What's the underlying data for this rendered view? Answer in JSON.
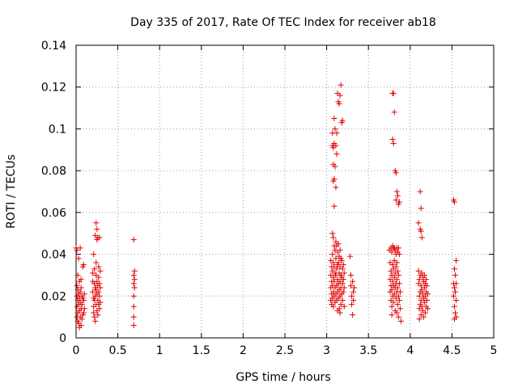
{
  "chart_data": {
    "type": "scatter",
    "title": "Day 335 of 2017, Rate Of TEC Index for receiver ab18",
    "xlabel": "GPS time / hours",
    "ylabel": "ROTI / TECUs",
    "xlim": [
      0,
      5
    ],
    "ylim": [
      0,
      0.14
    ],
    "grid": true,
    "marker": "+",
    "marker_color": "#e00000",
    "xticks": [
      "0",
      "0.5",
      "1",
      "1.5",
      "2",
      "2.5",
      "3",
      "3.5",
      "4",
      "4.5",
      "5"
    ],
    "yticks": [
      "0",
      "0.02",
      "0.04",
      "0.06",
      "0.08",
      "0.1",
      "0.12",
      "0.14"
    ],
    "series": [
      {
        "name": "ROTI",
        "points": [
          [
            0.0,
            0.043
          ],
          [
            0.01,
            0.042
          ],
          [
            0.01,
            0.025
          ],
          [
            0.01,
            0.02
          ],
          [
            0.01,
            0.015
          ],
          [
            0.01,
            0.01
          ],
          [
            0.02,
            0.023
          ],
          [
            0.02,
            0.018
          ],
          [
            0.02,
            0.012
          ],
          [
            0.02,
            0.008
          ],
          [
            0.03,
            0.021
          ],
          [
            0.03,
            0.016
          ],
          [
            0.03,
            0.007
          ],
          [
            0.04,
            0.027
          ],
          [
            0.04,
            0.019
          ],
          [
            0.04,
            0.013
          ],
          [
            0.04,
            0.005
          ],
          [
            0.05,
            0.043
          ],
          [
            0.05,
            0.022
          ],
          [
            0.05,
            0.017
          ],
          [
            0.05,
            0.01
          ],
          [
            0.06,
            0.024
          ],
          [
            0.06,
            0.014
          ],
          [
            0.06,
            0.006
          ],
          [
            0.07,
            0.02
          ],
          [
            0.07,
            0.016
          ],
          [
            0.07,
            0.009
          ],
          [
            0.08,
            0.034
          ],
          [
            0.08,
            0.019
          ],
          [
            0.08,
            0.011
          ],
          [
            0.09,
            0.035
          ],
          [
            0.09,
            0.018
          ],
          [
            0.09,
            0.012
          ],
          [
            0.1,
            0.021
          ],
          [
            0.1,
            0.014
          ],
          [
            0.03,
            0.038
          ],
          [
            0.02,
            0.03
          ],
          [
            0.06,
            0.028
          ],
          [
            0.2,
            0.031
          ],
          [
            0.2,
            0.027
          ],
          [
            0.2,
            0.022
          ],
          [
            0.21,
            0.019
          ],
          [
            0.21,
            0.015
          ],
          [
            0.21,
            0.012
          ],
          [
            0.22,
            0.026
          ],
          [
            0.22,
            0.018
          ],
          [
            0.22,
            0.01
          ],
          [
            0.23,
            0.049
          ],
          [
            0.23,
            0.024
          ],
          [
            0.23,
            0.02
          ],
          [
            0.23,
            0.008
          ],
          [
            0.24,
            0.055
          ],
          [
            0.24,
            0.03
          ],
          [
            0.24,
            0.023
          ],
          [
            0.24,
            0.016
          ],
          [
            0.25,
            0.052
          ],
          [
            0.25,
            0.047
          ],
          [
            0.25,
            0.027
          ],
          [
            0.25,
            0.021
          ],
          [
            0.25,
            0.013
          ],
          [
            0.26,
            0.048
          ],
          [
            0.26,
            0.025
          ],
          [
            0.26,
            0.018
          ],
          [
            0.26,
            0.011
          ],
          [
            0.27,
            0.029
          ],
          [
            0.27,
            0.022
          ],
          [
            0.27,
            0.016
          ],
          [
            0.28,
            0.048
          ],
          [
            0.28,
            0.026
          ],
          [
            0.28,
            0.02
          ],
          [
            0.28,
            0.014
          ],
          [
            0.29,
            0.032
          ],
          [
            0.29,
            0.024
          ],
          [
            0.29,
            0.017
          ],
          [
            0.21,
            0.04
          ],
          [
            0.22,
            0.033
          ],
          [
            0.24,
            0.036
          ],
          [
            0.27,
            0.034
          ],
          [
            0.69,
            0.047
          ],
          [
            0.69,
            0.03
          ],
          [
            0.69,
            0.026
          ],
          [
            0.69,
            0.02
          ],
          [
            0.69,
            0.015
          ],
          [
            0.69,
            0.01
          ],
          [
            0.69,
            0.006
          ],
          [
            0.7,
            0.032
          ],
          [
            0.7,
            0.028
          ],
          [
            0.7,
            0.024
          ],
          [
            3.05,
            0.037
          ],
          [
            3.05,
            0.03
          ],
          [
            3.05,
            0.024
          ],
          [
            3.05,
            0.018
          ],
          [
            3.06,
            0.034
          ],
          [
            3.06,
            0.027
          ],
          [
            3.06,
            0.021
          ],
          [
            3.06,
            0.016
          ],
          [
            3.07,
            0.098
          ],
          [
            3.07,
            0.092
          ],
          [
            3.07,
            0.05
          ],
          [
            3.07,
            0.04
          ],
          [
            3.07,
            0.032
          ],
          [
            3.07,
            0.025
          ],
          [
            3.07,
            0.019
          ],
          [
            3.08,
            0.091
          ],
          [
            3.08,
            0.083
          ],
          [
            3.08,
            0.075
          ],
          [
            3.08,
            0.048
          ],
          [
            3.08,
            0.036
          ],
          [
            3.08,
            0.029
          ],
          [
            3.08,
            0.022
          ],
          [
            3.08,
            0.015
          ],
          [
            3.09,
            0.105
          ],
          [
            3.09,
            0.093
          ],
          [
            3.09,
            0.076
          ],
          [
            3.09,
            0.063
          ],
          [
            3.09,
            0.044
          ],
          [
            3.09,
            0.034
          ],
          [
            3.09,
            0.027
          ],
          [
            3.09,
            0.02
          ],
          [
            3.1,
            0.1
          ],
          [
            3.1,
            0.082
          ],
          [
            3.1,
            0.042
          ],
          [
            3.1,
            0.031
          ],
          [
            3.1,
            0.024
          ],
          [
            3.1,
            0.017
          ],
          [
            3.11,
            0.092
          ],
          [
            3.11,
            0.072
          ],
          [
            3.11,
            0.046
          ],
          [
            3.11,
            0.038
          ],
          [
            3.11,
            0.03
          ],
          [
            3.11,
            0.021
          ],
          [
            3.12,
            0.098
          ],
          [
            3.12,
            0.088
          ],
          [
            3.12,
            0.044
          ],
          [
            3.12,
            0.033
          ],
          [
            3.12,
            0.025
          ],
          [
            3.12,
            0.018
          ],
          [
            3.13,
            0.117
          ],
          [
            3.13,
            0.041
          ],
          [
            3.13,
            0.035
          ],
          [
            3.13,
            0.028
          ],
          [
            3.13,
            0.022
          ],
          [
            3.14,
            0.113
          ],
          [
            3.14,
            0.045
          ],
          [
            3.14,
            0.036
          ],
          [
            3.14,
            0.026
          ],
          [
            3.14,
            0.019
          ],
          [
            3.15,
            0.112
          ],
          [
            3.15,
            0.039
          ],
          [
            3.15,
            0.031
          ],
          [
            3.15,
            0.023
          ],
          [
            3.15,
            0.014
          ],
          [
            3.16,
            0.116
          ],
          [
            3.16,
            0.042
          ],
          [
            3.16,
            0.034
          ],
          [
            3.16,
            0.027
          ],
          [
            3.16,
            0.02
          ],
          [
            3.17,
            0.121
          ],
          [
            3.17,
            0.038
          ],
          [
            3.17,
            0.03
          ],
          [
            3.17,
            0.024
          ],
          [
            3.17,
            0.016
          ],
          [
            3.18,
            0.103
          ],
          [
            3.18,
            0.037
          ],
          [
            3.18,
            0.029
          ],
          [
            3.18,
            0.021
          ],
          [
            3.19,
            0.104
          ],
          [
            3.19,
            0.033
          ],
          [
            3.19,
            0.026
          ],
          [
            3.19,
            0.018
          ],
          [
            3.2,
            0.035
          ],
          [
            3.2,
            0.028
          ],
          [
            3.2,
            0.022
          ],
          [
            3.21,
            0.031
          ],
          [
            3.21,
            0.024
          ],
          [
            3.21,
            0.015
          ],
          [
            3.13,
            0.013
          ],
          [
            3.16,
            0.012
          ],
          [
            3.28,
            0.039
          ],
          [
            3.29,
            0.03
          ],
          [
            3.29,
            0.025
          ],
          [
            3.3,
            0.02
          ],
          [
            3.3,
            0.016
          ],
          [
            3.31,
            0.027
          ],
          [
            3.31,
            0.011
          ],
          [
            3.32,
            0.022
          ],
          [
            3.32,
            0.018
          ],
          [
            3.33,
            0.024
          ],
          [
            3.75,
            0.042
          ],
          [
            3.76,
            0.036
          ],
          [
            3.76,
            0.028
          ],
          [
            3.76,
            0.022
          ],
          [
            3.77,
            0.043
          ],
          [
            3.77,
            0.032
          ],
          [
            3.77,
            0.025
          ],
          [
            3.77,
            0.018
          ],
          [
            3.78,
            0.041
          ],
          [
            3.78,
            0.03
          ],
          [
            3.78,
            0.023
          ],
          [
            3.78,
            0.015
          ],
          [
            3.79,
            0.117
          ],
          [
            3.79,
            0.095
          ],
          [
            3.79,
            0.044
          ],
          [
            3.79,
            0.035
          ],
          [
            3.79,
            0.027
          ],
          [
            3.79,
            0.02
          ],
          [
            3.8,
            0.117
          ],
          [
            3.8,
            0.093
          ],
          [
            3.8,
            0.043
          ],
          [
            3.8,
            0.033
          ],
          [
            3.8,
            0.025
          ],
          [
            3.8,
            0.017
          ],
          [
            3.81,
            0.108
          ],
          [
            3.81,
            0.043
          ],
          [
            3.81,
            0.037
          ],
          [
            3.81,
            0.029
          ],
          [
            3.81,
            0.021
          ],
          [
            3.82,
            0.08
          ],
          [
            3.82,
            0.042
          ],
          [
            3.82,
            0.031
          ],
          [
            3.82,
            0.024
          ],
          [
            3.82,
            0.013
          ],
          [
            3.83,
            0.079
          ],
          [
            3.83,
            0.066
          ],
          [
            3.83,
            0.04
          ],
          [
            3.83,
            0.034
          ],
          [
            3.83,
            0.026
          ],
          [
            3.83,
            0.019
          ],
          [
            3.84,
            0.07
          ],
          [
            3.84,
            0.043
          ],
          [
            3.84,
            0.036
          ],
          [
            3.84,
            0.028
          ],
          [
            3.84,
            0.022
          ],
          [
            3.85,
            0.068
          ],
          [
            3.85,
            0.041
          ],
          [
            3.85,
            0.032
          ],
          [
            3.85,
            0.024
          ],
          [
            3.85,
            0.016
          ],
          [
            3.86,
            0.064
          ],
          [
            3.86,
            0.043
          ],
          [
            3.86,
            0.03
          ],
          [
            3.86,
            0.02
          ],
          [
            3.86,
            0.01
          ],
          [
            3.87,
            0.065
          ],
          [
            3.87,
            0.04
          ],
          [
            3.87,
            0.026
          ],
          [
            3.87,
            0.018
          ],
          [
            3.88,
            0.022
          ],
          [
            3.88,
            0.014
          ],
          [
            3.89,
            0.008
          ],
          [
            3.78,
            0.011
          ],
          [
            3.84,
            0.012
          ],
          [
            4.1,
            0.055
          ],
          [
            4.1,
            0.032
          ],
          [
            4.1,
            0.026
          ],
          [
            4.11,
            0.028
          ],
          [
            4.11,
            0.02
          ],
          [
            4.11,
            0.014
          ],
          [
            4.12,
            0.07
          ],
          [
            4.12,
            0.052
          ],
          [
            4.12,
            0.03
          ],
          [
            4.12,
            0.022
          ],
          [
            4.12,
            0.016
          ],
          [
            4.13,
            0.062
          ],
          [
            4.13,
            0.051
          ],
          [
            4.13,
            0.025
          ],
          [
            4.13,
            0.018
          ],
          [
            4.13,
            0.011
          ],
          [
            4.14,
            0.048
          ],
          [
            4.14,
            0.031
          ],
          [
            4.14,
            0.023
          ],
          [
            4.14,
            0.015
          ],
          [
            4.15,
            0.029
          ],
          [
            4.15,
            0.021
          ],
          [
            4.15,
            0.013
          ],
          [
            4.16,
            0.027
          ],
          [
            4.16,
            0.019
          ],
          [
            4.16,
            0.01
          ],
          [
            4.17,
            0.03
          ],
          [
            4.17,
            0.024
          ],
          [
            4.17,
            0.017
          ],
          [
            4.18,
            0.026
          ],
          [
            4.18,
            0.02
          ],
          [
            4.18,
            0.012
          ],
          [
            4.19,
            0.028
          ],
          [
            4.19,
            0.022
          ],
          [
            4.19,
            0.015
          ],
          [
            4.2,
            0.025
          ],
          [
            4.2,
            0.018
          ],
          [
            4.21,
            0.021
          ],
          [
            4.21,
            0.014
          ],
          [
            4.11,
            0.009
          ],
          [
            4.52,
            0.066
          ],
          [
            4.52,
            0.026
          ],
          [
            4.52,
            0.02
          ],
          [
            4.53,
            0.065
          ],
          [
            4.53,
            0.033
          ],
          [
            4.53,
            0.024
          ],
          [
            4.53,
            0.015
          ],
          [
            4.54,
            0.03
          ],
          [
            4.54,
            0.022
          ],
          [
            4.54,
            0.012
          ],
          [
            4.55,
            0.037
          ],
          [
            4.55,
            0.026
          ],
          [
            4.55,
            0.018
          ],
          [
            4.55,
            0.01
          ],
          [
            4.53,
            0.009
          ]
        ]
      }
    ]
  }
}
